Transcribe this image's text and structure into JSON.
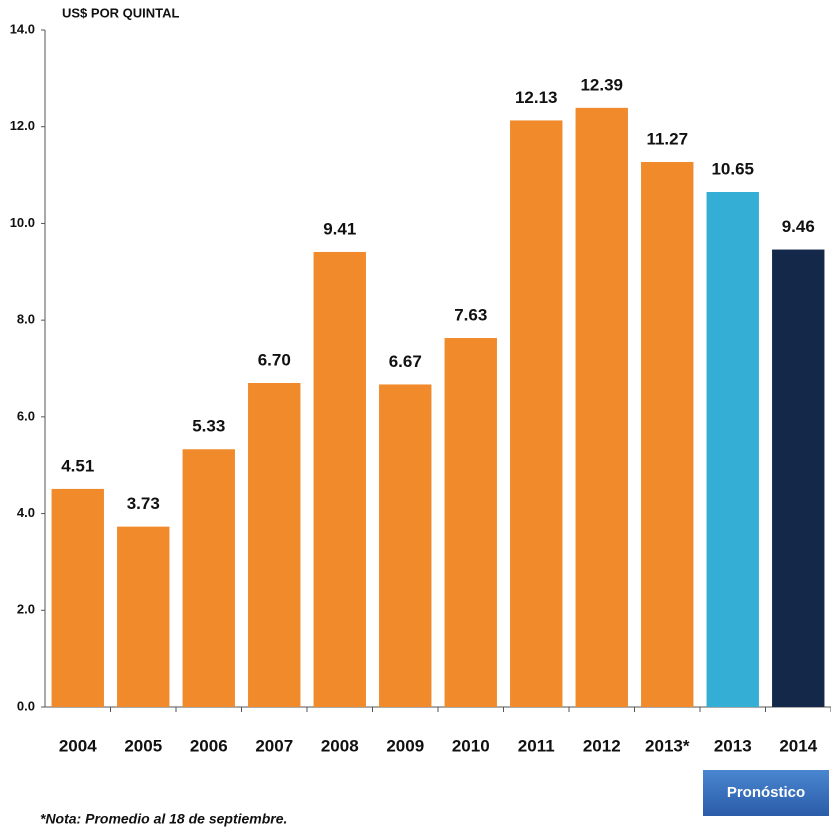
{
  "chart_data": {
    "type": "bar",
    "y_label": "US$ POR QUINTAL",
    "categories": [
      "2004",
      "2005",
      "2006",
      "2007",
      "2008",
      "2009",
      "2010",
      "2011",
      "2012",
      "2013*",
      "2013",
      "2014"
    ],
    "values": [
      4.51,
      3.73,
      5.33,
      6.7,
      9.41,
      6.67,
      7.63,
      12.13,
      12.39,
      11.27,
      10.65,
      9.46
    ],
    "value_labels": [
      "4.51",
      "3.73",
      "5.33",
      "6.70",
      "9.41",
      "6.67",
      "7.63",
      "12.13",
      "12.39",
      "11.27",
      "10.65",
      "9.46"
    ],
    "colors": [
      "#f08a2a",
      "#f08a2a",
      "#f08a2a",
      "#f08a2a",
      "#f08a2a",
      "#f08a2a",
      "#f08a2a",
      "#f08a2a",
      "#f08a2a",
      "#f08a2a",
      "#35aed6",
      "#14294a"
    ],
    "ylim": [
      0,
      14
    ],
    "yticks": [
      {
        "value": 0,
        "label": "0.0"
      },
      {
        "value": 2,
        "label": "2.0"
      },
      {
        "value": 4,
        "label": "4.0"
      },
      {
        "value": 6,
        "label": "6.0"
      },
      {
        "value": 8,
        "label": "8.0"
      },
      {
        "value": 10,
        "label": "10.0"
      },
      {
        "value": 12,
        "label": "12.0"
      },
      {
        "value": 14,
        "label": "14.0"
      }
    ],
    "forecast_label": "Pronóstico",
    "note": "*Nota: Promedio al 18 de septiembre."
  }
}
